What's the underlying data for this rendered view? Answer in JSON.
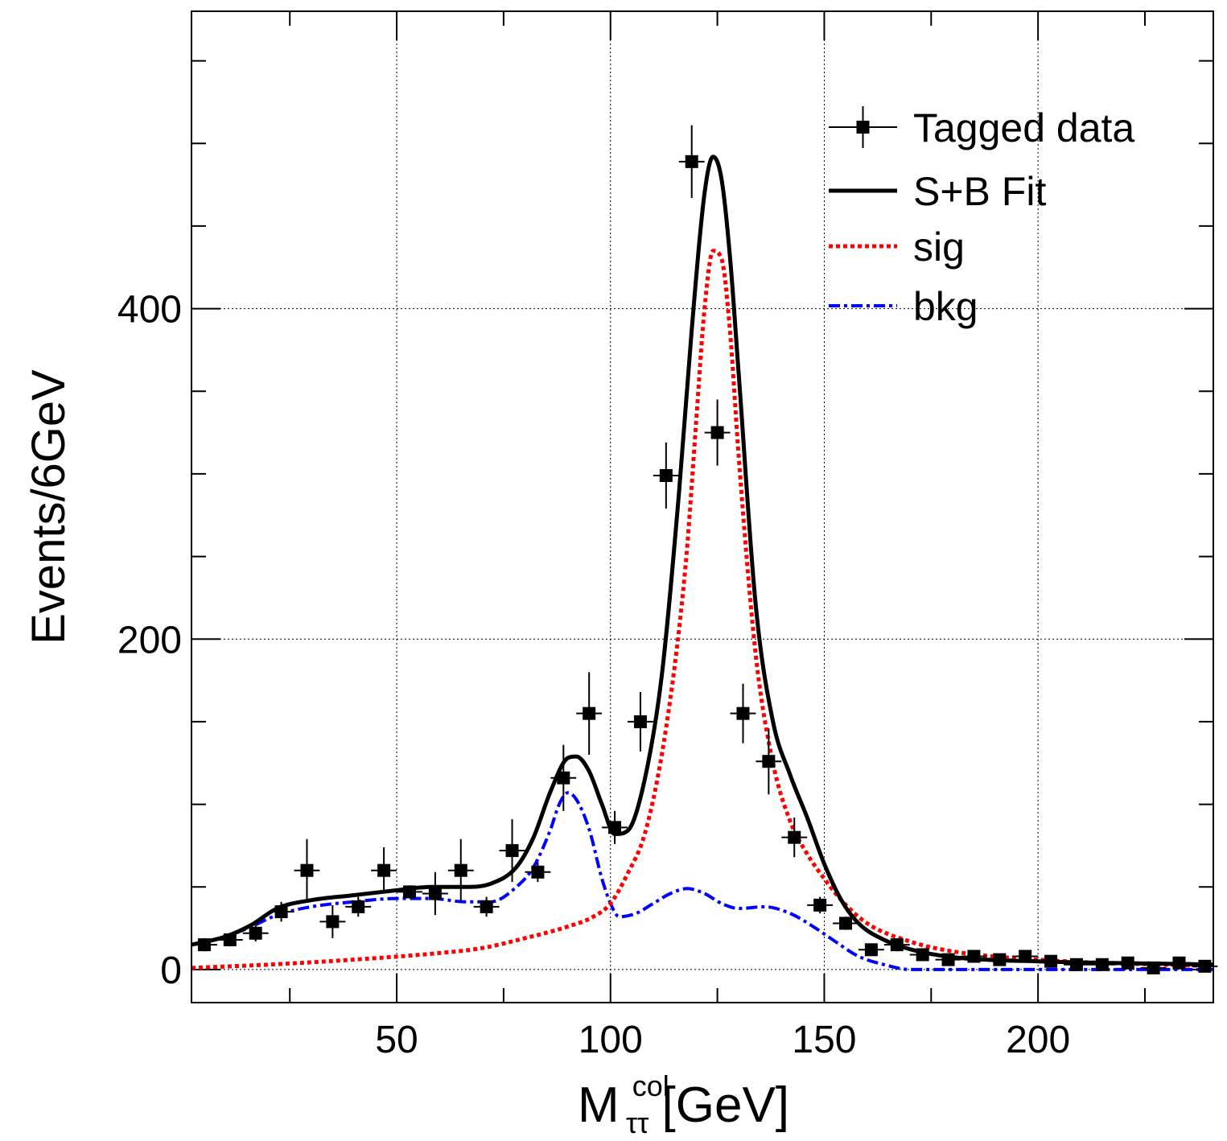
{
  "chart_data": {
    "type": "line",
    "xlabel": {
      "main": "M",
      "sup": "col",
      "sub": "ττ",
      "unit": "[GeV]"
    },
    "ylabel": "Events/6GeV",
    "xlim": [
      2,
      241
    ],
    "ylim": [
      -20,
      580
    ],
    "x_major_ticks": [
      50,
      100,
      150,
      200
    ],
    "x_tick_labels": [
      "50",
      "100",
      "150",
      "200"
    ],
    "x_minor_step": 25,
    "y_major_ticks": [
      0,
      200,
      400
    ],
    "y_tick_labels": [
      "0",
      "200",
      "400"
    ],
    "y_minor_step": 50,
    "grid": true,
    "legend_position": "top-right",
    "colors": {
      "data": "#000000",
      "fit": "#000000",
      "sig": "#ff0000",
      "bkg": "#0000ff"
    },
    "legend": [
      {
        "key": "data",
        "label": "Tagged data"
      },
      {
        "key": "fit",
        "label": "S+B Fit"
      },
      {
        "key": "sig",
        "label": "sig"
      },
      {
        "key": "bkg",
        "label": "bkg"
      }
    ],
    "data_points": {
      "x_half_width": 3,
      "x": [
        5,
        11,
        17,
        23,
        29,
        35,
        41,
        47,
        53,
        59,
        65,
        71,
        77,
        83,
        89,
        95,
        101,
        107,
        113,
        119,
        125,
        131,
        137,
        143,
        149,
        155,
        161,
        167,
        173,
        179,
        185,
        191,
        197,
        203,
        209,
        215,
        221,
        227,
        233,
        239
      ],
      "y": [
        15,
        18,
        22,
        35,
        60,
        29,
        38,
        60,
        47,
        46,
        60,
        38,
        72,
        59,
        116,
        155,
        86,
        150,
        299,
        489,
        325,
        155,
        126,
        80,
        39,
        28,
        12,
        15,
        9,
        6,
        8,
        6,
        8,
        5,
        3,
        3,
        4,
        1,
        4,
        2
      ],
      "y_err": [
        4,
        4,
        5,
        6,
        19,
        10,
        6,
        14,
        4,
        13,
        19,
        6,
        19,
        6,
        20,
        25,
        10,
        18,
        20,
        22,
        20,
        18,
        20,
        12,
        5,
        4,
        3,
        4,
        3,
        3,
        3,
        3,
        3,
        2,
        2,
        2,
        2,
        1,
        2,
        1
      ]
    },
    "series": [
      {
        "name": "S+B Fit",
        "key": "fit",
        "x": [
          2,
          10,
          16,
          22,
          30,
          40,
          50,
          58,
          66,
          72,
          78,
          82,
          86,
          90,
          92,
          95,
          98,
          101,
          104,
          108,
          112,
          116,
          119,
          122,
          124,
          126,
          128,
          130,
          134,
          138,
          142,
          146,
          150,
          154,
          158,
          164,
          172,
          182,
          200,
          241
        ],
        "y": [
          15,
          20,
          27,
          37,
          42,
          45,
          48,
          50,
          50,
          52,
          62,
          80,
          108,
          128,
          129,
          120,
          100,
          82,
          84,
          115,
          178,
          288,
          387,
          470,
          492,
          478,
          430,
          360,
          220,
          150,
          118,
          92,
          64,
          42,
          28,
          18,
          11,
          7,
          5,
          3
        ]
      },
      {
        "name": "sig",
        "key": "sig",
        "x": [
          2,
          20,
          40,
          60,
          70,
          80,
          90,
          96,
          100,
          104,
          108,
          112,
          116,
          118,
          120,
          122,
          124,
          126,
          128,
          130,
          134,
          138,
          142,
          146,
          150,
          154,
          160,
          170,
          180,
          200,
          241
        ],
        "y": [
          1,
          3,
          6,
          10,
          13,
          19,
          26,
          32,
          40,
          58,
          82,
          130,
          205,
          258,
          330,
          400,
          435,
          430,
          385,
          310,
          190,
          125,
          90,
          70,
          55,
          42,
          28,
          17,
          11,
          6,
          2
        ]
      },
      {
        "name": "bkg",
        "key": "bkg",
        "x": [
          2,
          10,
          16,
          22,
          30,
          40,
          50,
          58,
          66,
          72,
          78,
          82,
          86,
          88,
          90,
          92,
          95,
          98,
          100,
          102,
          106,
          110,
          114,
          118,
          122,
          126,
          130,
          136,
          142,
          148,
          152,
          158,
          164,
          170,
          180,
          200,
          241
        ],
        "y": [
          15,
          20,
          26,
          33,
          38,
          41,
          43,
          43,
          41,
          41,
          50,
          62,
          85,
          100,
          107,
          103,
          85,
          55,
          40,
          32,
          34,
          40,
          46,
          49,
          46,
          40,
          37,
          38,
          34,
          25,
          18,
          8,
          3,
          0,
          0,
          0,
          0
        ]
      }
    ]
  }
}
